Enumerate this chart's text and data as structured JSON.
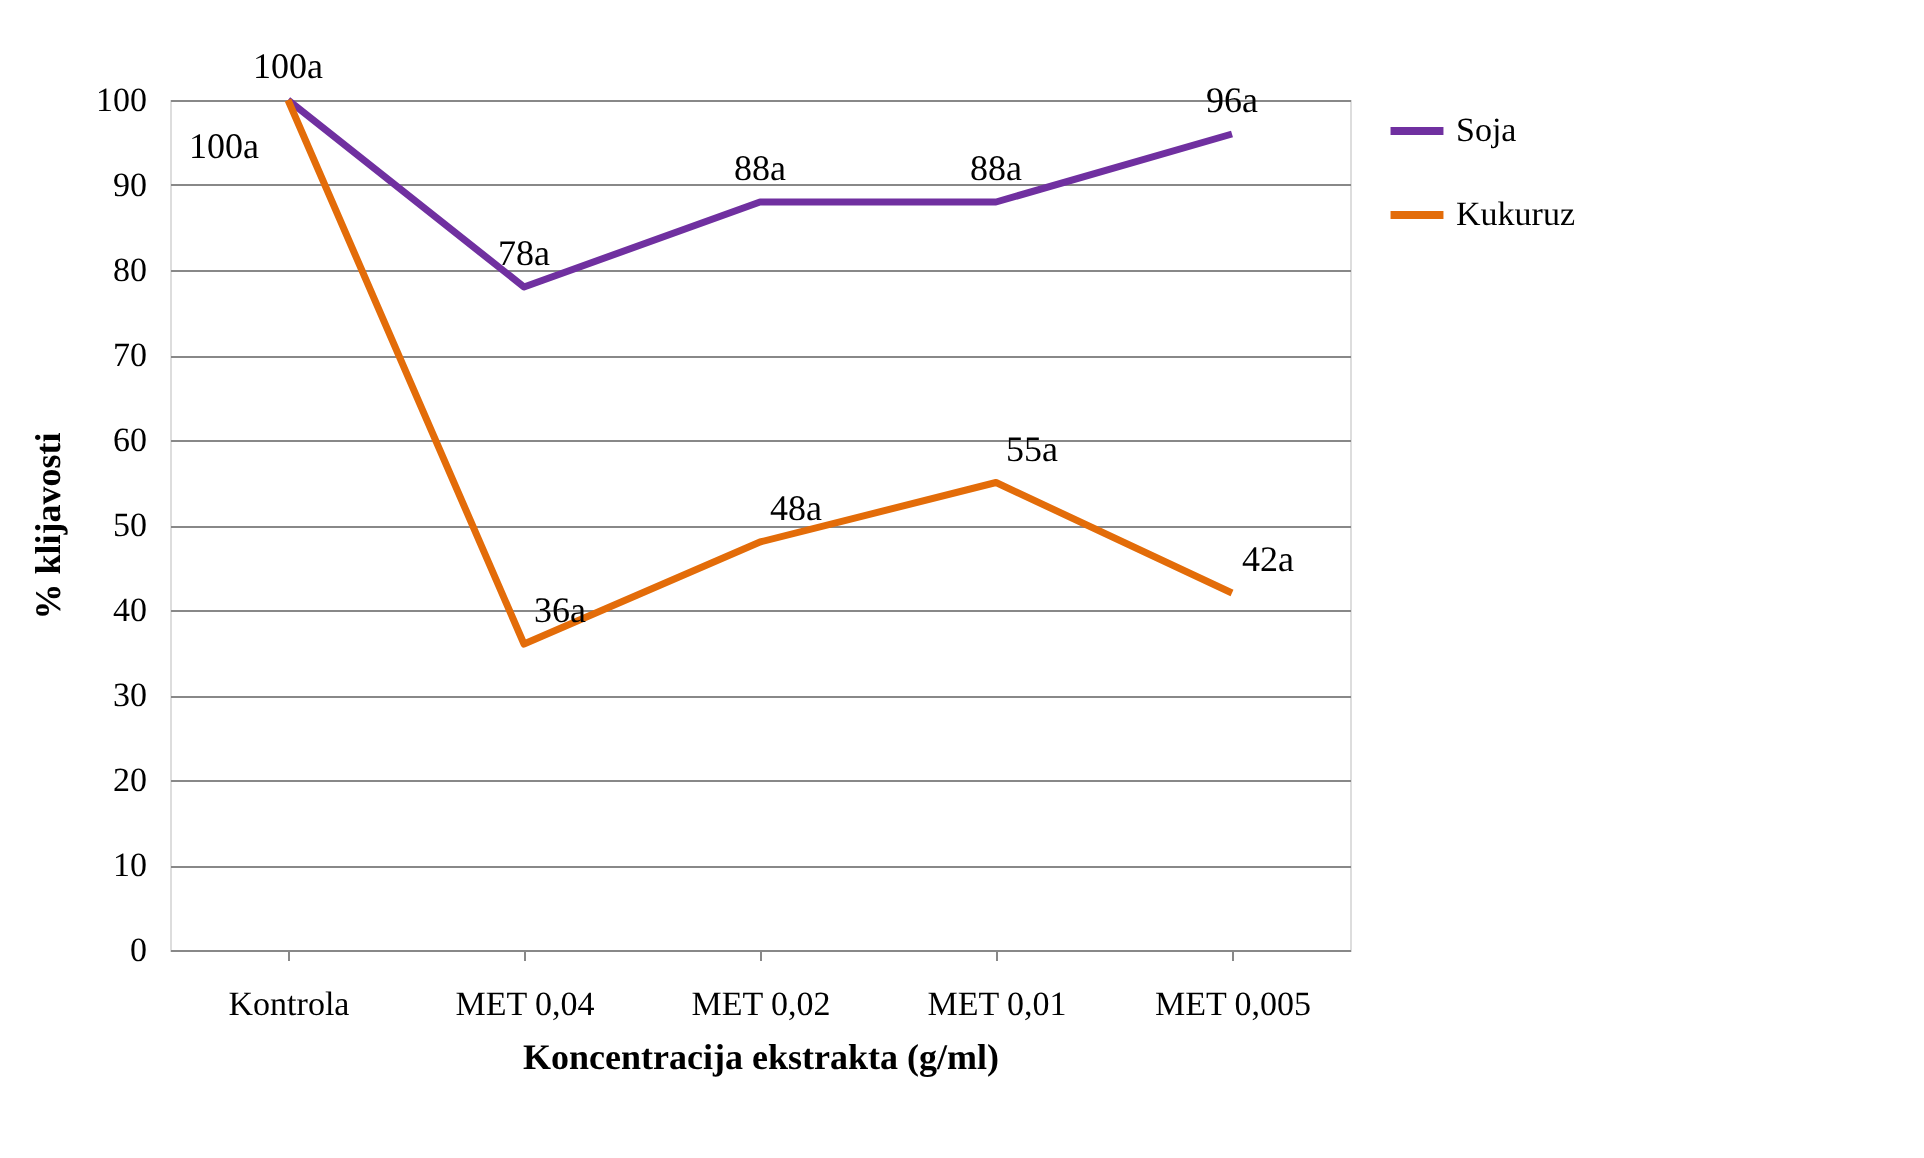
{
  "chart_data": {
    "type": "line",
    "xlabel": "Koncentracija ekstrakta (g/ml)",
    "ylabel": "% klijavosti",
    "categories": [
      "Kontrola",
      "MET 0,04",
      "MET 0,02",
      "MET 0,01",
      "MET 0,005"
    ],
    "series": [
      {
        "name": "Soja",
        "color": "#7030a0",
        "values": [
          100,
          78,
          88,
          88,
          96
        ],
        "value_labels": [
          "100a",
          "78a",
          "88a",
          "88a",
          "96a"
        ]
      },
      {
        "name": "Kukuruz",
        "color": "#e36c09",
        "values": [
          100,
          36,
          48,
          55,
          42
        ],
        "value_labels": [
          "100a",
          "36a",
          "48a",
          "55a",
          "42a"
        ]
      }
    ],
    "ylim": [
      0,
      100
    ],
    "yticks": [
      0,
      10,
      20,
      30,
      40,
      50,
      60,
      70,
      80,
      90,
      100
    ],
    "grid": "y",
    "legend": "right",
    "marker": "none"
  }
}
